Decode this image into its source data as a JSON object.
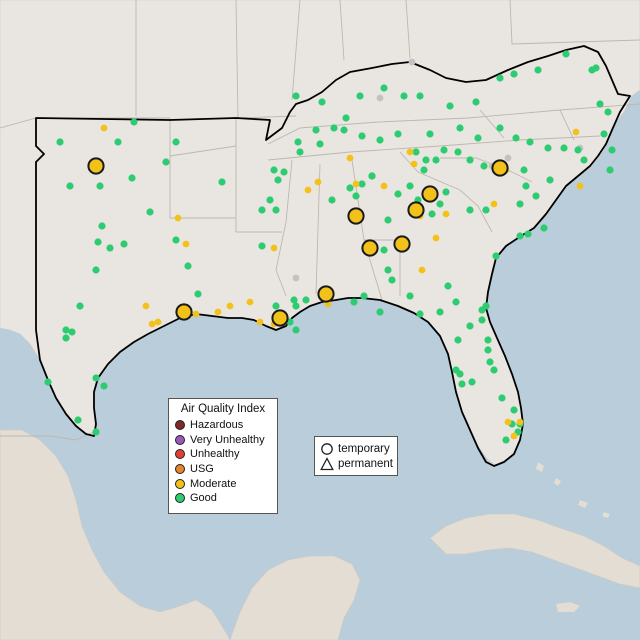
{
  "legend": {
    "title": "Air Quality Index",
    "categories": [
      {
        "label": "Hazardous",
        "color": "#7e2a2a"
      },
      {
        "label": "Very Unhealthy",
        "color": "#9b59b6"
      },
      {
        "label": "Unhealthy",
        "color": "#e23f33"
      },
      {
        "label": "USG",
        "color": "#e8832a"
      },
      {
        "label": "Moderate",
        "color": "#f2c21b"
      },
      {
        "label": "Good",
        "color": "#2ecc71"
      }
    ]
  },
  "markers": {
    "temporary_label": "temporary",
    "permanent_label": "permanent"
  },
  "colors": {
    "water": "#b9cddb",
    "land": "#e9e6e1",
    "no_data": "#c2c2c2"
  }
}
